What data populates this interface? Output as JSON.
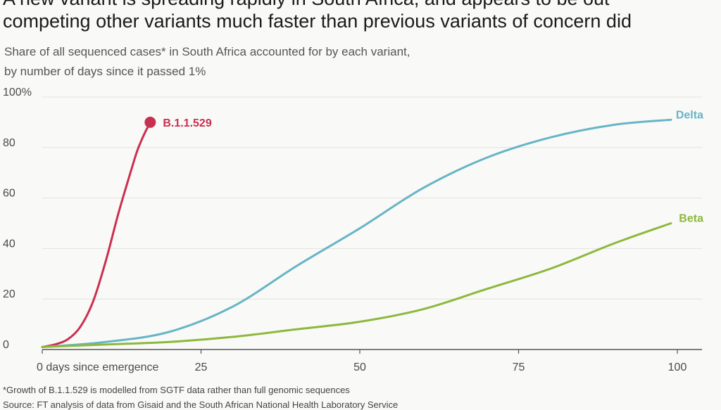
{
  "headline": {
    "line1": "A new variant is spreading rapidly in South Africa, and appears to be out",
    "line2": "competing other variants much faster than previous variants of concern did"
  },
  "subtitle": {
    "line1": "Share of all sequenced cases* in South Africa accounted for by each variant,",
    "line2": "by number of days since it passed 1%"
  },
  "footnote": {
    "line1": "*Growth of B.1.1.529 is modelled from SGTF data rather than full genomic sequences",
    "line2": "Source: FT analysis of data from Gisaid and the South African National Health Laboratory Service"
  },
  "chart_data": {
    "type": "line",
    "xlabel": "",
    "ylabel": "",
    "xlim": [
      0,
      100
    ],
    "ylim": [
      0,
      100
    ],
    "grid": true,
    "legend": "direct labels at line ends",
    "x_ticks": [
      {
        "value": 0,
        "label": "0 days since emergence"
      },
      {
        "value": 25,
        "label": "25"
      },
      {
        "value": 50,
        "label": "50"
      },
      {
        "value": 75,
        "label": "75"
      },
      {
        "value": 100,
        "label": "100"
      }
    ],
    "y_ticks": [
      {
        "value": 0,
        "label": "0"
      },
      {
        "value": 20,
        "label": "20"
      },
      {
        "value": 40,
        "label": "40"
      },
      {
        "value": 60,
        "label": "60"
      },
      {
        "value": 80,
        "label": "80"
      },
      {
        "value": 100,
        "label": "100%"
      }
    ],
    "series": [
      {
        "name": "B.1.1.529",
        "color": "#c9304f",
        "end_marker": true,
        "x": [
          0,
          2,
          4,
          6,
          8,
          10,
          12,
          14,
          15,
          16,
          17
        ],
        "y": [
          1,
          2,
          4,
          9,
          19,
          35,
          54,
          71,
          79,
          85,
          90
        ]
      },
      {
        "name": "Delta",
        "color": "#66b5c6",
        "end_marker": false,
        "x": [
          0,
          10,
          20,
          30,
          40,
          50,
          60,
          70,
          80,
          90,
          99
        ],
        "y": [
          1,
          3,
          7,
          17,
          33,
          48,
          64,
          76,
          84,
          89,
          91
        ]
      },
      {
        "name": "Beta",
        "color": "#8db83c",
        "end_marker": false,
        "x": [
          0,
          10,
          20,
          30,
          40,
          50,
          60,
          70,
          80,
          90,
          99
        ],
        "y": [
          1,
          2,
          3,
          5,
          8,
          11,
          16,
          24,
          32,
          42,
          50
        ]
      }
    ]
  }
}
